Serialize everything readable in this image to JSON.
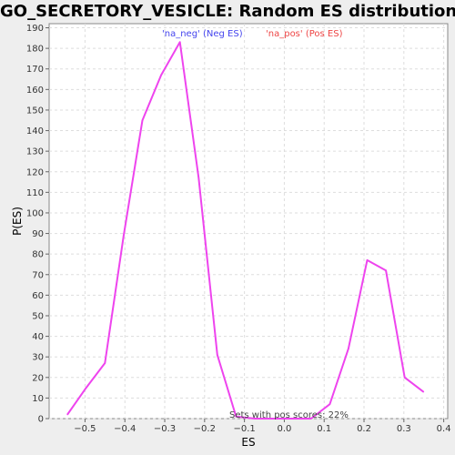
{
  "chart_data": {
    "type": "line",
    "title": "GO_SECRETORY_VESICLE: Random ES distribution",
    "xlabel": "ES",
    "ylabel": "P(ES)",
    "xlim": [
      -0.59,
      0.41
    ],
    "ylim": [
      0,
      192
    ],
    "x_ticks": [
      -0.5,
      -0.4,
      -0.3,
      -0.2,
      -0.1,
      0.0,
      0.1,
      0.2,
      0.3,
      0.4
    ],
    "x_tick_labels": [
      "−0.5",
      "−0.4",
      "−0.3",
      "−0.2",
      "−0.1",
      "0.0",
      "0.1",
      "0.2",
      "0.3",
      "0.4"
    ],
    "y_ticks": [
      0,
      10,
      20,
      30,
      40,
      50,
      60,
      70,
      80,
      90,
      100,
      110,
      120,
      130,
      140,
      150,
      160,
      170,
      180,
      190
    ],
    "grid": true,
    "series": [
      {
        "color": "#ee44ee",
        "x": [
          -0.544,
          -0.497,
          -0.45,
          -0.403,
          -0.356,
          -0.309,
          -0.262,
          -0.215,
          -0.168,
          -0.121,
          -0.074,
          -0.027,
          0.02,
          0.067,
          0.114,
          0.161,
          0.208,
          0.255,
          0.302,
          0.349
        ],
        "y": [
          2,
          15,
          27,
          89,
          145,
          167,
          183,
          117,
          31,
          1,
          0,
          0,
          0,
          0,
          7,
          34,
          77,
          72,
          20,
          13
        ]
      }
    ],
    "legend": {
      "placement": "top",
      "entries": [
        {
          "label": "'na_neg' (Neg ES)",
          "color": "#4444ee"
        },
        {
          "label": "'na_pos' (Pos ES)",
          "color": "#ee4444"
        }
      ]
    },
    "annotation": "Sets with pos scores: 22%"
  }
}
